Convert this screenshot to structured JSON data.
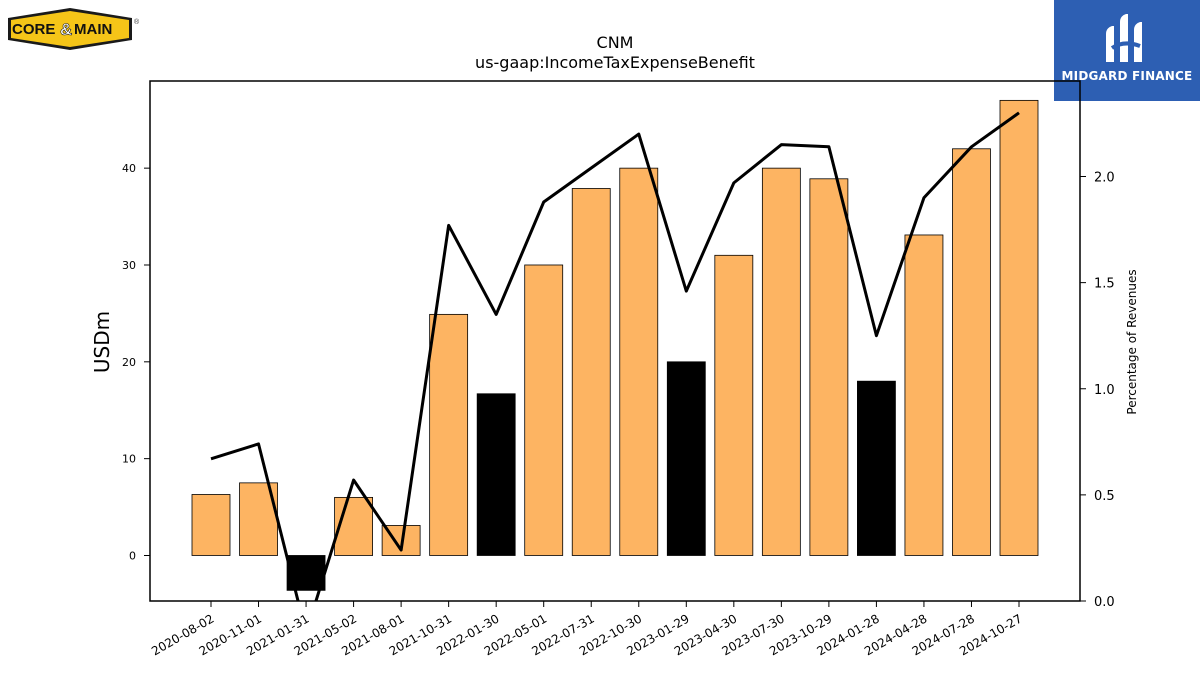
{
  "logos": {
    "left_text_a": "CORE",
    "left_text_amp": "&",
    "left_text_b": "MAIN",
    "left_mark": "®",
    "right_text": "MIDGARD FINANCE"
  },
  "colors": {
    "bar_positive": "#fdb462",
    "bar_highlight": "#000000",
    "line": "#000000",
    "logo_left_bg": "#f5c518",
    "logo_right_bg": "#2d5fb3"
  },
  "chart_data": {
    "type": "bar",
    "title": "CNM",
    "subtitle": "us-gaap:IncomeTaxExpenseBenefit",
    "ylabel": "USDm",
    "y2label": "Percentage of Revenues",
    "ylim": [
      -4.7,
      49
    ],
    "y2lim": [
      0.0,
      2.45
    ],
    "yticks": [
      0,
      10,
      20,
      30,
      40
    ],
    "y2ticks": [
      0.0,
      0.5,
      1.0,
      1.5,
      2.0
    ],
    "y2ticks_labels": [
      "0.0",
      "0.5",
      "1.0",
      "1.5",
      "2.0"
    ],
    "categories": [
      "2020-08-02",
      "2020-11-01",
      "2021-01-31",
      "2021-05-02",
      "2021-08-01",
      "2021-10-31",
      "2022-01-30",
      "2022-05-01",
      "2022-07-31",
      "2022-10-30",
      "2023-01-29",
      "2023-04-30",
      "2023-07-30",
      "2023-10-29",
      "2024-01-28",
      "2024-04-28",
      "2024-07-28",
      "2024-10-27"
    ],
    "series": [
      {
        "type": "bar",
        "values": [
          6.3,
          7.5,
          -3.6,
          6.0,
          3.1,
          24.9,
          16.7,
          30.0,
          37.9,
          40.0,
          20.0,
          31.0,
          40.0,
          38.9,
          18.0,
          33.1,
          42.0,
          47.0
        ],
        "highlight": [
          false,
          false,
          true,
          false,
          false,
          false,
          true,
          false,
          false,
          false,
          true,
          false,
          false,
          false,
          true,
          false,
          false,
          false
        ]
      },
      {
        "type": "line",
        "axis": "right",
        "values": [
          0.67,
          0.74,
          -0.15,
          0.57,
          0.24,
          1.77,
          1.35,
          1.88,
          2.04,
          2.2,
          1.46,
          1.97,
          2.15,
          2.14,
          1.25,
          1.9,
          2.14,
          2.3
        ]
      }
    ],
    "grid": false,
    "legend": "none"
  }
}
